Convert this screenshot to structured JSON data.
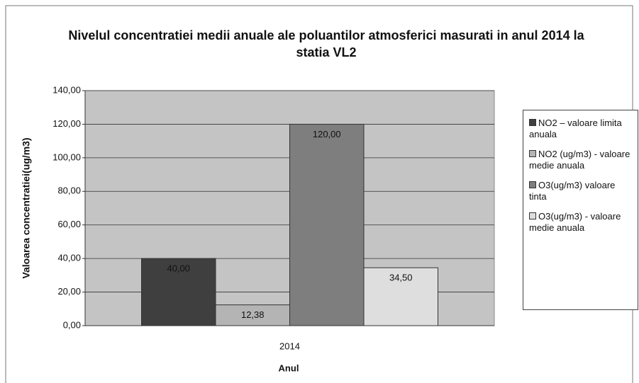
{
  "chart_data": {
    "type": "bar",
    "title": "Nivelul concentratiei medii anuale ale poluantilor atmosferici masurati in anul 2014  la statia VL2",
    "xlabel": "Anul",
    "ylabel": "Valoarea concentratiei(ug/m3)",
    "categories": [
      "2014"
    ],
    "series": [
      {
        "name": "NO2 – valoare limita anuala",
        "color": "#3f3f3f",
        "values": [
          40
        ],
        "value_labels": [
          "40,00"
        ]
      },
      {
        "name": "NO2 (ug/m3) - valoare medie anuala",
        "color": "#b4b4b4",
        "values": [
          12.38
        ],
        "value_labels": [
          "12,38"
        ]
      },
      {
        "name": "O3(ug/m3) valoare tinta",
        "color": "#7e7e7e",
        "values": [
          120
        ],
        "value_labels": [
          "120,00"
        ]
      },
      {
        "name": "O3(ug/m3) - valoare medie anuala",
        "color": "#dedede",
        "values": [
          34.5
        ],
        "value_labels": [
          "34,50"
        ]
      }
    ],
    "ylim": [
      0,
      140
    ],
    "yticks": [
      {
        "value": 0,
        "label": "0,00"
      },
      {
        "value": 20,
        "label": "20,00"
      },
      {
        "value": 40,
        "label": "40,00"
      },
      {
        "value": 60,
        "label": "60,00"
      },
      {
        "value": 80,
        "label": "80,00"
      },
      {
        "value": 100,
        "label": "100,00"
      },
      {
        "value": 120,
        "label": "120,00"
      },
      {
        "value": 140,
        "label": "140,00"
      }
    ],
    "grid": true
  }
}
